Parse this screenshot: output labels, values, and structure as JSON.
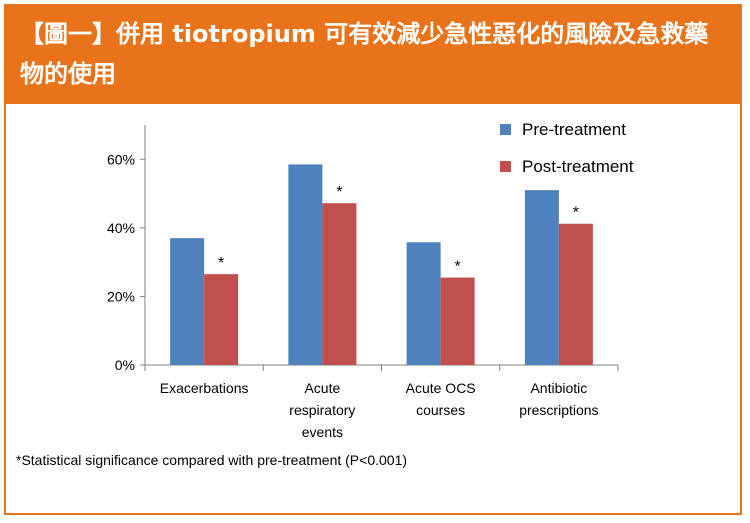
{
  "header": {
    "title": "【圖一】併用 tiotropium 可有效減少急性惡化的風險及急救藥物的使用"
  },
  "chart_data": {
    "type": "bar",
    "categories": [
      "Exacerbations",
      "Acute respiratory events",
      "Acute OCS courses",
      "Antibiotic prescriptions"
    ],
    "category_lines": [
      [
        "Exacerbations"
      ],
      [
        "Acute",
        "respiratory",
        "events"
      ],
      [
        "Acute OCS",
        "courses"
      ],
      [
        "Antibiotic",
        "prescriptions"
      ]
    ],
    "series": [
      {
        "name": "Pre-treatment",
        "color": "#4f81bd",
        "values": [
          37,
          58.5,
          35.8,
          51
        ]
      },
      {
        "name": "Post-treatment",
        "color": "#c0504d",
        "values": [
          26.5,
          47.2,
          25.5,
          41.2
        ]
      }
    ],
    "significance_marker": "*",
    "yticks": [
      0,
      20,
      40,
      60
    ],
    "ytick_labels": [
      "0%",
      "20%",
      "40%",
      "60%"
    ],
    "ylim": [
      0,
      70
    ],
    "legend_position": "top-right",
    "grid": false
  },
  "footnote": "*Statistical significance compared with pre-treatment (P<0.001)"
}
